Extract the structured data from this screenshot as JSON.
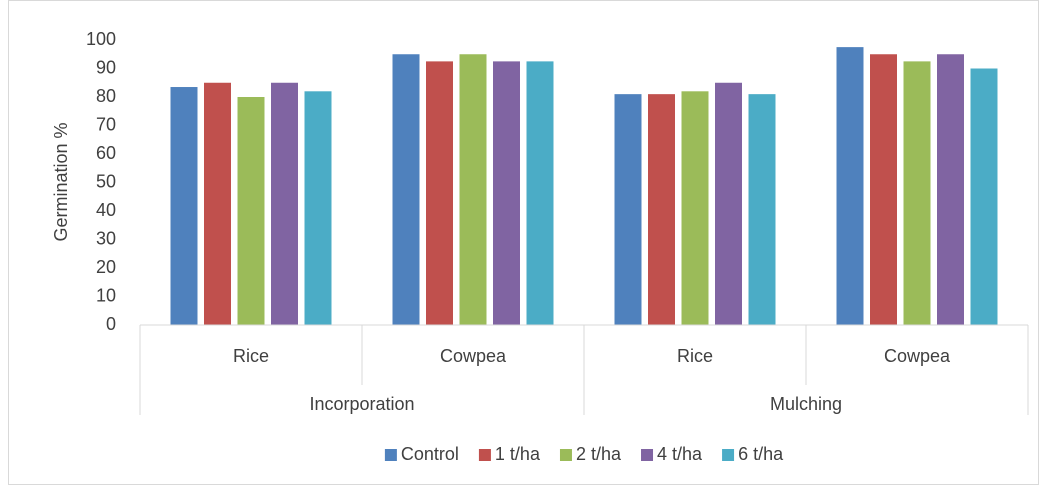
{
  "chart_data": {
    "type": "bar",
    "y_axis_label": "Germination %",
    "groups": [
      {
        "name": "Incorporation",
        "categories": [
          "Rice",
          "Cowpea"
        ]
      },
      {
        "name": "Mulching",
        "categories": [
          "Rice",
          "Cowpea"
        ]
      }
    ],
    "series": [
      {
        "name": "Control",
        "color": "#4f81bd",
        "values": [
          83.5,
          95,
          81,
          97.5
        ]
      },
      {
        "name": "1 t/ha",
        "color": "#c0504d",
        "values": [
          85,
          92.5,
          81,
          95
        ]
      },
      {
        "name": "2 t/ha",
        "color": "#9bbb59",
        "values": [
          80,
          95,
          82,
          92.5
        ]
      },
      {
        "name": "4 t/ha",
        "color": "#8064a2",
        "values": [
          85,
          92.5,
          85,
          95
        ]
      },
      {
        "name": "6 t/ha",
        "color": "#4bacc6",
        "values": [
          82,
          92.5,
          81,
          90
        ]
      }
    ],
    "ylim": [
      0,
      100
    ],
    "yticks": [
      0,
      10,
      20,
      30,
      40,
      50,
      60,
      70,
      80,
      90,
      100
    ],
    "grid": false,
    "legend": "bottom"
  }
}
